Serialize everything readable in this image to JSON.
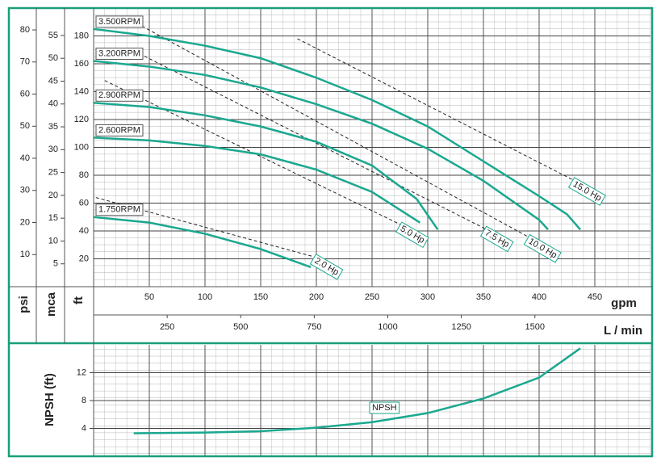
{
  "chart_data": [
    {
      "type": "line",
      "xlabel": "gpm",
      "xlim": [
        0,
        500
      ],
      "xticks": [
        50,
        100,
        150,
        200,
        250,
        300,
        350,
        400,
        450
      ],
      "x2label": "L / min",
      "x2lim": [
        0,
        1893
      ],
      "x2ticks": [
        250,
        500,
        750,
        1000,
        1250,
        1500
      ],
      "ylabel": "ft",
      "ylim": [
        0,
        200
      ],
      "yticks": [
        20,
        40,
        60,
        80,
        100,
        120,
        140,
        160,
        180
      ],
      "psi_label": "psi",
      "psi_lim": [
        0,
        86.8
      ],
      "psi_ticks": [
        10,
        20,
        30,
        40,
        50,
        60,
        70,
        80
      ],
      "mca_label": "mca",
      "mca_lim": [
        0,
        61
      ],
      "mca_ticks": [
        5,
        10,
        15,
        20,
        25,
        30,
        35,
        40,
        45,
        50,
        55
      ],
      "grid": true,
      "series": [
        {
          "name": "3.500RPM",
          "color": "#1aa88f",
          "x": [
            0,
            50,
            100,
            150,
            200,
            250,
            300,
            350,
            400,
            425,
            437
          ],
          "values": [
            185,
            180,
            173,
            164,
            150,
            134,
            115,
            90,
            65,
            52,
            41
          ]
        },
        {
          "name": "3.200RPM",
          "color": "#1aa88f",
          "x": [
            0,
            50,
            100,
            150,
            200,
            250,
            300,
            350,
            400,
            408
          ],
          "values": [
            162,
            158,
            152,
            143,
            131,
            117,
            99,
            76,
            48,
            41
          ]
        },
        {
          "name": "2.900RPM",
          "color": "#1aa88f",
          "x": [
            0,
            50,
            100,
            150,
            200,
            250,
            290,
            309
          ],
          "values": [
            132,
            129,
            123,
            115,
            104,
            87,
            63,
            41
          ]
        },
        {
          "name": "2.600RPM",
          "color": "#1aa88f",
          "x": [
            0,
            50,
            100,
            150,
            200,
            250,
            293
          ],
          "values": [
            107,
            105,
            101,
            95,
            84,
            68,
            46
          ]
        },
        {
          "name": "1.750RPM",
          "color": "#1aa88f",
          "x": [
            0,
            50,
            100,
            150,
            195
          ],
          "values": [
            50,
            46,
            38,
            27,
            14
          ]
        }
      ],
      "power_lines": [
        {
          "name": "15.0 Hp",
          "x": [
            183,
            432
          ],
          "values": [
            178,
            76
          ]
        },
        {
          "name": "10.0 Hp",
          "x": [
            39,
            392
          ],
          "values": [
            189,
            35
          ]
        },
        {
          "name": "7.5 Hp",
          "x": [
            32,
            353
          ],
          "values": [
            171,
            41
          ]
        },
        {
          "name": "5.0 Hp",
          "x": [
            10,
            277
          ],
          "values": [
            148,
            44
          ]
        },
        {
          "name": "2.0 Hp",
          "x": [
            2,
            200
          ],
          "values": [
            64,
            21
          ]
        }
      ]
    },
    {
      "type": "line",
      "ylabel": "NPSH (ft)",
      "xlim": [
        0,
        500
      ],
      "ylim": [
        0,
        16
      ],
      "yticks": [
        4,
        8,
        12
      ],
      "grid": true,
      "series": [
        {
          "name": "NPSH",
          "color": "#1aa88f",
          "x": [
            36,
            100,
            150,
            200,
            250,
            300,
            350,
            400,
            437
          ],
          "values": [
            3.3,
            3.4,
            3.6,
            4.1,
            4.9,
            6.2,
            8.3,
            11.3,
            15.5
          ]
        }
      ]
    }
  ]
}
